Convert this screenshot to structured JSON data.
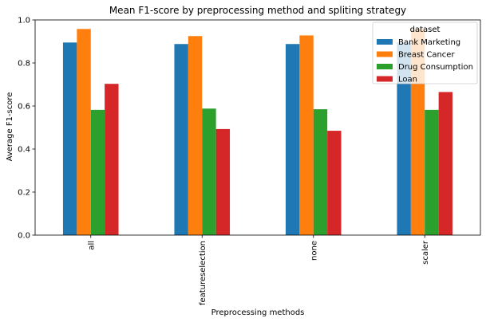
{
  "chart_data": {
    "type": "bar",
    "title": "Mean F1-score by preprocessing method and spliting strategy",
    "xlabel": "Preprocessing methods",
    "ylabel": "Average F1-score",
    "ylim": [
      0,
      1.0
    ],
    "yticks": [
      "0.0",
      "0.2",
      "0.4",
      "0.6",
      "0.8",
      "1.0"
    ],
    "categories": [
      "all",
      "featureselection",
      "none",
      "scaler"
    ],
    "legend": {
      "title": "dataset",
      "placement": "top-right"
    },
    "series": [
      {
        "name": "Bank Marketing",
        "color": "#1f77b4",
        "values": [
          0.895,
          0.888,
          0.888,
          0.895
        ]
      },
      {
        "name": "Breast Cancer",
        "color": "#ff7f0e",
        "values": [
          0.958,
          0.925,
          0.928,
          0.958
        ]
      },
      {
        "name": "Drug Consumption",
        "color": "#2ca02c",
        "values": [
          0.582,
          0.588,
          0.585,
          0.582
        ]
      },
      {
        "name": "Loan",
        "color": "#d62728",
        "values": [
          0.703,
          0.493,
          0.485,
          0.665
        ]
      }
    ]
  }
}
